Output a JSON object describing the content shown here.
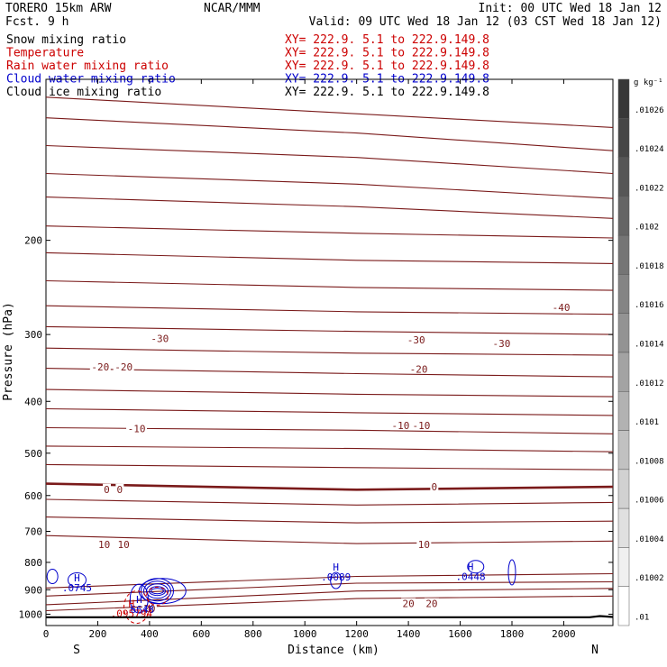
{
  "header": {
    "model": "TORERO  15km ARW",
    "fcst": "Fcst.    9 h",
    "org": "NCAR/MMM",
    "init": "Init: 00 UTC Wed 18 Jan 12",
    "valid": "Valid: 09 UTC Wed 18 Jan 12 (03 CST Wed 18 Jan 12)"
  },
  "fields": [
    {
      "label": "Snow mixing ratio",
      "xy": "XY= 222.9.  5.1 to 222.9.149.8",
      "label_color": "#000000",
      "xy_color": "#cc0000"
    },
    {
      "label": "Temperature",
      "xy": "XY= 222.9.  5.1 to 222.9.149.8",
      "label_color": "#cc0000",
      "xy_color": "#cc0000"
    },
    {
      "label": "Rain water mixing ratio",
      "xy": "XY= 222.9.  5.1 to 222.9.149.8",
      "label_color": "#cc0000",
      "xy_color": "#cc0000"
    },
    {
      "label": "Cloud water mixing ratio",
      "xy": "XY= 222.9.  5.1 to 222.9.149.8",
      "label_color": "#0000cc",
      "xy_color": "#0000cc"
    },
    {
      "label": "Cloud ice mixing ratio",
      "xy": "XY= 222.9.  5.1 to 222.9.149.8",
      "label_color": "#000000",
      "xy_color": "#000000"
    }
  ],
  "chart_data": {
    "type": "contour",
    "xlabel": "Distance (km)",
    "ylabel": "Pressure (hPa)",
    "xlim": [
      0,
      2190
    ],
    "ylim": [
      1050,
      100
    ],
    "yscale": "log",
    "x_ticks": [
      0,
      200,
      400,
      600,
      800,
      1000,
      1200,
      1400,
      1600,
      1800,
      2000
    ],
    "y_ticks": [
      200,
      300,
      400,
      500,
      600,
      700,
      800,
      900,
      1000
    ],
    "endpoint_labels": {
      "left": "S",
      "right": "N"
    },
    "colors": {
      "temperature": "#7a1a1a",
      "cloud_water": "#0000cc",
      "rain_water": "#cc0000",
      "surface": "#000000"
    },
    "temperature_isotherms": [
      {
        "points": [
          [
            0,
            108
          ],
          [
            2190,
            123
          ]
        ]
      },
      {
        "points": [
          [
            0,
            118
          ],
          [
            1200,
            126
          ],
          [
            2190,
            136
          ]
        ]
      },
      {
        "points": [
          [
            0,
            133
          ],
          [
            1200,
            140
          ],
          [
            2190,
            150
          ]
        ]
      },
      {
        "points": [
          [
            0,
            150
          ],
          [
            1200,
            157
          ],
          [
            2190,
            167
          ]
        ]
      },
      {
        "points": [
          [
            0,
            166
          ],
          [
            1200,
            173
          ],
          [
            2190,
            182
          ]
        ]
      },
      {
        "points": [
          [
            0,
            188
          ],
          [
            1200,
            194
          ],
          [
            2190,
            198
          ]
        ]
      },
      {
        "points": [
          [
            0,
            211
          ],
          [
            1200,
            218
          ],
          [
            2190,
            221
          ]
        ]
      },
      {
        "points": [
          [
            0,
            238
          ],
          [
            1200,
            245
          ],
          [
            2190,
            248
          ]
        ]
      },
      {
        "points": [
          [
            0,
            265
          ],
          [
            1200,
            272
          ],
          [
            2190,
            275
          ]
        ]
      },
      {
        "points": [
          [
            0,
            290
          ],
          [
            1200,
            296
          ],
          [
            2190,
            300
          ]
        ]
      },
      {
        "points": [
          [
            0,
            318
          ],
          [
            1200,
            325
          ],
          [
            2190,
            328
          ]
        ]
      },
      {
        "points": [
          [
            0,
            347
          ],
          [
            1200,
            355
          ],
          [
            2190,
            360
          ]
        ]
      },
      {
        "points": [
          [
            0,
            380
          ],
          [
            1200,
            388
          ],
          [
            2190,
            392
          ]
        ]
      },
      {
        "points": [
          [
            0,
            413
          ],
          [
            1200,
            420
          ],
          [
            2190,
            425
          ]
        ]
      },
      {
        "points": [
          [
            0,
            448
          ],
          [
            1200,
            453
          ],
          [
            2190,
            460
          ]
        ]
      },
      {
        "points": [
          [
            0,
            485
          ],
          [
            1200,
            490
          ],
          [
            2190,
            497
          ]
        ]
      },
      {
        "points": [
          [
            0,
            525
          ],
          [
            1200,
            532
          ],
          [
            2190,
            537
          ]
        ]
      },
      {
        "points": [
          [
            0,
            570
          ],
          [
            1200,
            585
          ],
          [
            2190,
            578
          ]
        ],
        "width": 2.6
      },
      {
        "points": [
          [
            0,
            610
          ],
          [
            1200,
            625
          ],
          [
            2190,
            618
          ]
        ]
      },
      {
        "points": [
          [
            0,
            658
          ],
          [
            1200,
            675
          ],
          [
            2190,
            670
          ]
        ]
      },
      {
        "points": [
          [
            0,
            713
          ],
          [
            1200,
            738
          ],
          [
            2190,
            730
          ]
        ]
      },
      {
        "points": [
          [
            0,
            893
          ],
          [
            1200,
            850
          ],
          [
            2190,
            840
          ]
        ]
      },
      {
        "points": [
          [
            0,
            925
          ],
          [
            1200,
            875
          ],
          [
            2190,
            870
          ]
        ]
      },
      {
        "points": [
          [
            0,
            960
          ],
          [
            1200,
            905
          ],
          [
            2190,
            895
          ]
        ]
      },
      {
        "points": [
          [
            0,
            985
          ],
          [
            1200,
            935
          ],
          [
            2190,
            925
          ]
        ]
      }
    ],
    "temperature_labels": [
      {
        "text": "-40",
        "x": 1990,
        "p": 267
      },
      {
        "text": "-30",
        "x": 440,
        "p": 305
      },
      {
        "text": "-30",
        "x": 1430,
        "p": 307
      },
      {
        "text": "-30",
        "x": 1760,
        "p": 312
      },
      {
        "text": "-20",
        "x": 210,
        "p": 345
      },
      {
        "text": "-20",
        "x": 300,
        "p": 345
      },
      {
        "text": "-20",
        "x": 1440,
        "p": 348
      },
      {
        "text": "-10",
        "x": 350,
        "p": 450
      },
      {
        "text": "-10",
        "x": 1370,
        "p": 444
      },
      {
        "text": "-10",
        "x": 1450,
        "p": 444
      },
      {
        "text": "0",
        "x": 235,
        "p": 584
      },
      {
        "text": "0",
        "x": 285,
        "p": 584
      },
      {
        "text": "0",
        "x": 1500,
        "p": 578
      },
      {
        "text": "10",
        "x": 225,
        "p": 740
      },
      {
        "text": "10",
        "x": 300,
        "p": 740
      },
      {
        "text": "10",
        "x": 1460,
        "p": 740
      },
      {
        "text": "20",
        "x": 400,
        "p": 975
      },
      {
        "text": "20",
        "x": 1400,
        "p": 955
      },
      {
        "text": "20",
        "x": 1490,
        "p": 955
      }
    ],
    "cloud_water_maxima": [
      {
        "x": 120,
        "p": 875,
        "mark": "H",
        "value": ".0745"
      },
      {
        "x": 1120,
        "p": 835,
        "mark": "H",
        "value": ".0089"
      },
      {
        "x": 1640,
        "p": 833,
        "mark": "H",
        "value": ".0448"
      },
      {
        "x": 360,
        "p": 960,
        "mark": "H",
        "value": ".6648"
      }
    ],
    "rain_water_maxima": [
      {
        "x": 330,
        "p": 978,
        "mark": "H",
        "value": ".095794"
      }
    ],
    "surface_pressure": [
      [
        0,
        1013
      ],
      [
        2100,
        1013
      ],
      [
        2140,
        1008
      ],
      [
        2190,
        1012
      ]
    ],
    "colorbar": {
      "unit": "g kg⁻¹",
      "ticks": [
        ".01026",
        ".01024",
        ".01022",
        ".0102",
        ".01018",
        ".01016",
        ".01014",
        ".01012",
        ".0101",
        ".01008",
        ".01006",
        ".01004",
        ".01002",
        ".01"
      ]
    }
  }
}
